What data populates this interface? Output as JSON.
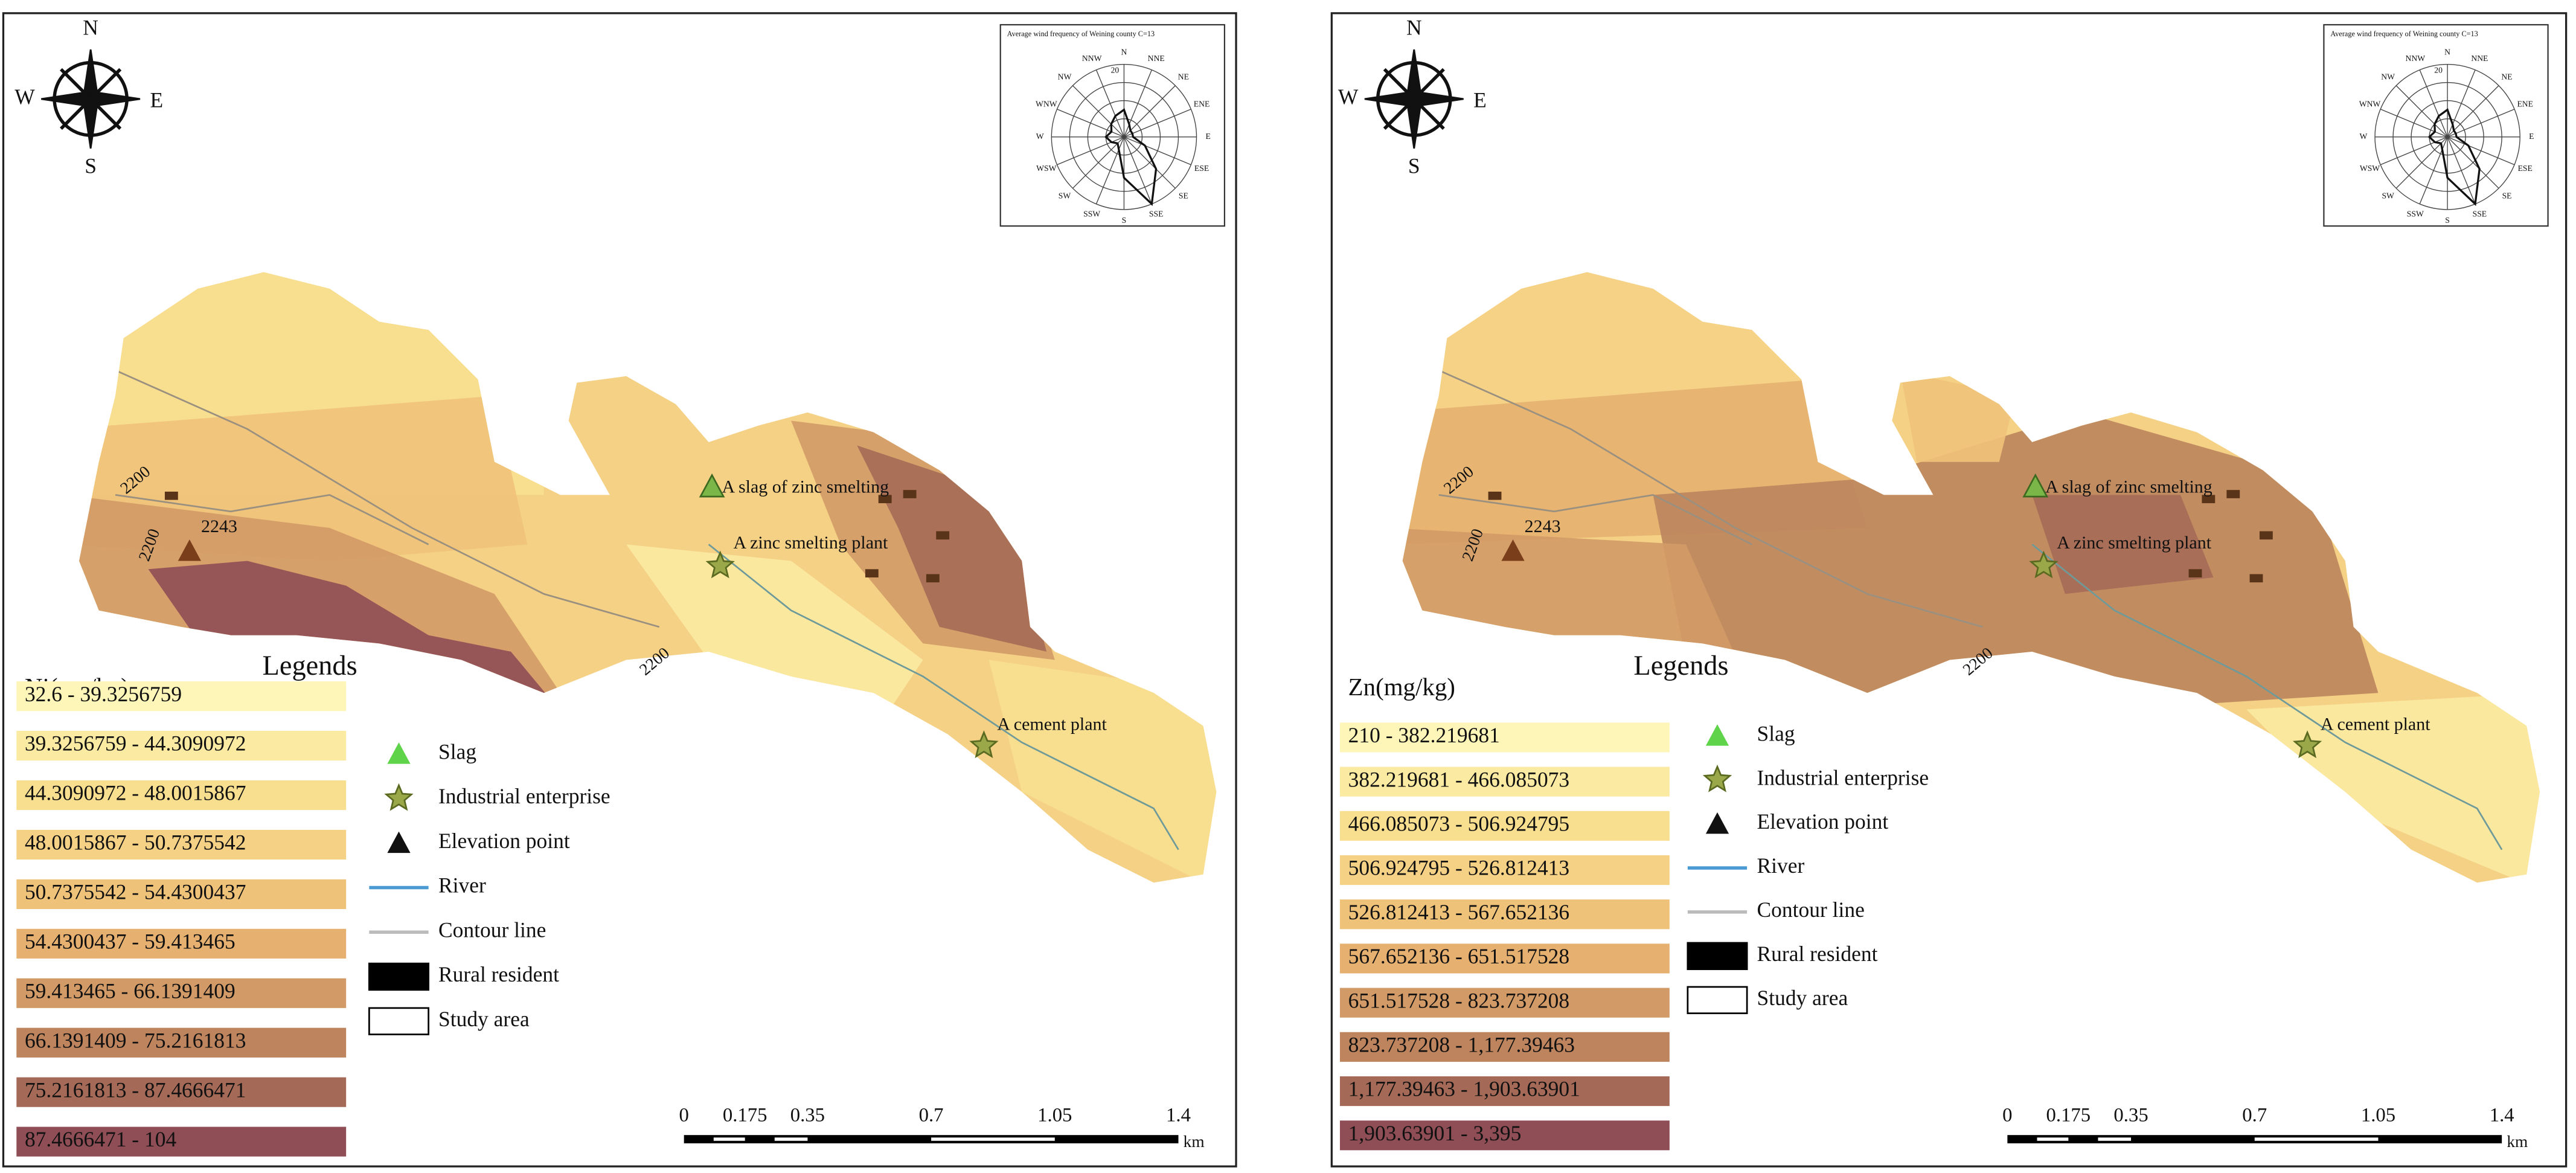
{
  "panels": [
    {
      "legend_heading": "Legends",
      "legend_title": "Ni(mg/kg)",
      "classes": [
        "32.6 - 39.3256759",
        "39.3256759 - 44.3090972",
        "44.3090972 - 48.0015867",
        "48.0015867 - 50.7375542",
        "50.7375542 - 54.4300437",
        "54.4300437 - 59.413465",
        "59.413465 - 66.1391409",
        "66.1391409 - 75.2161813",
        "75.2161813 - 87.4666471",
        "87.4666471 - 104"
      ],
      "symbols": [
        "Slag",
        "Industrial enterprise",
        "Elevation point",
        "River",
        "Contour line",
        "Rural resident",
        "Study area"
      ],
      "places": [
        "A slag of zinc smelting",
        "A zinc smelting plant",
        "A cement plant"
      ],
      "elevation_label": "2243",
      "contour_labels": [
        "2200",
        "2200",
        "2200"
      ],
      "compass": [
        "N",
        "E",
        "S",
        "W"
      ],
      "scale_labels": [
        "0",
        "0.175",
        "0.35",
        "0.7",
        "1.05",
        "1.4"
      ],
      "scale_unit": "km",
      "wind_rose": {
        "title": "Average wind frequency of Weining county C=13",
        "ring_label": "20",
        "directions": [
          "N",
          "NNE",
          "NE",
          "ENE",
          "E",
          "ESE",
          "SE",
          "SSE",
          "S",
          "SSW",
          "SW",
          "WSW",
          "W",
          "WNW",
          "NW",
          "NNW"
        ]
      }
    },
    {
      "legend_heading": "Legends",
      "legend_title": "Zn(mg/kg)",
      "classes": [
        "210 - 382.219681",
        "382.219681 - 466.085073",
        "466.085073 - 506.924795",
        "506.924795 - 526.812413",
        "526.812413 - 567.652136",
        "567.652136 - 651.517528",
        "651.517528 - 823.737208",
        "823.737208 - 1,177.39463",
        "1,177.39463 - 1,903.63901",
        "1,903.63901 - 3,395"
      ],
      "symbols": [
        "Slag",
        "Industrial enterprise",
        "Elevation point",
        "River",
        "Contour line",
        "Rural resident",
        "Study area"
      ],
      "places": [
        "A slag of zinc smelting",
        "A zinc smelting plant",
        "A cement plant"
      ],
      "elevation_label": "2243",
      "contour_labels": [
        "2200",
        "2200",
        "2200"
      ],
      "compass": [
        "N",
        "E",
        "S",
        "W"
      ],
      "scale_labels": [
        "0",
        "0.175",
        "0.35",
        "0.7",
        "1.05",
        "1.4"
      ],
      "scale_unit": "km",
      "wind_rose": {
        "title": "Average wind frequency of Weining county C=13",
        "ring_label": "20",
        "directions": [
          "N",
          "NNE",
          "NE",
          "ENE",
          "E",
          "ESE",
          "SE",
          "SSE",
          "S",
          "SSW",
          "SW",
          "WSW",
          "W",
          "WNW",
          "NW",
          "NNW"
        ]
      }
    }
  ]
}
